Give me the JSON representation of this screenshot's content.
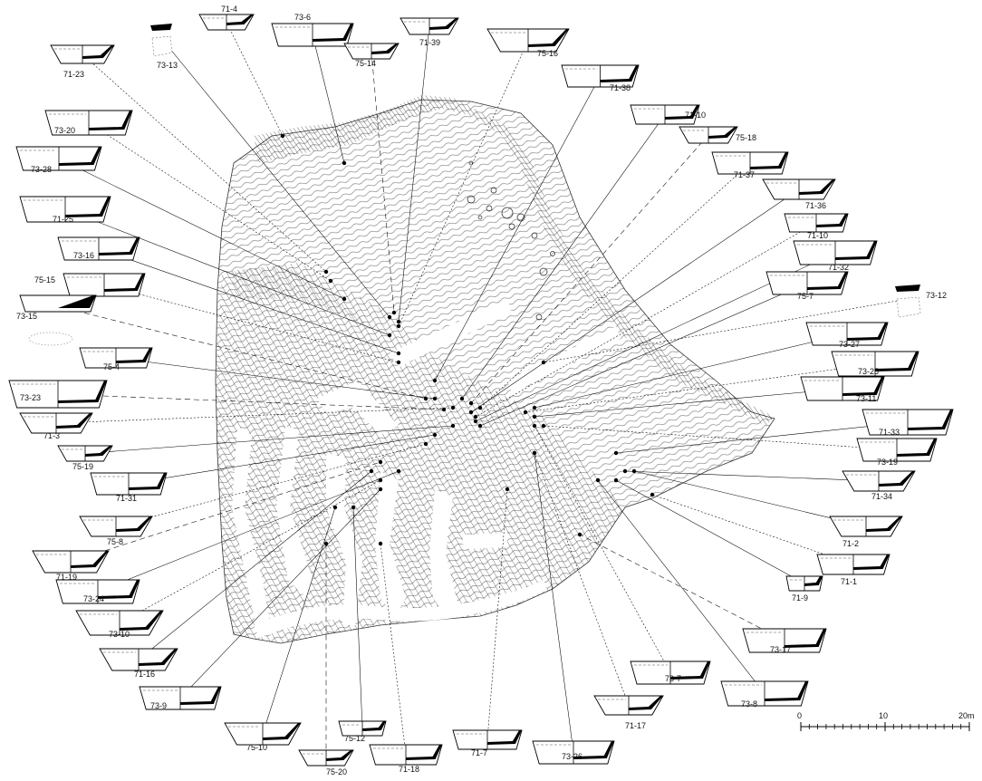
{
  "sherds": [
    {
      "id": "71-4"
    },
    {
      "id": "73-6"
    },
    {
      "id": "71-39"
    },
    {
      "id": "75-16"
    },
    {
      "id": "73-13"
    },
    {
      "id": "75-14"
    },
    {
      "id": "71-23"
    },
    {
      "id": "71-38"
    },
    {
      "id": "71-10"
    },
    {
      "id": "73-20"
    },
    {
      "id": "75-18"
    },
    {
      "id": "73-28"
    },
    {
      "id": "71-37"
    },
    {
      "id": "71-25"
    },
    {
      "id": "71-36"
    },
    {
      "id": "71-10"
    },
    {
      "id": "73-16"
    },
    {
      "id": "71-32"
    },
    {
      "id": "75-15"
    },
    {
      "id": "75-7"
    },
    {
      "id": "73-15"
    },
    {
      "id": "73-12"
    },
    {
      "id": "75-4"
    },
    {
      "id": "73-27"
    },
    {
      "id": "73-25"
    },
    {
      "id": "73-23"
    },
    {
      "id": "73-11"
    },
    {
      "id": "71-3"
    },
    {
      "id": "71-33"
    },
    {
      "id": "75-19"
    },
    {
      "id": "73-19"
    },
    {
      "id": "71-31"
    },
    {
      "id": "71-34"
    },
    {
      "id": "75-8"
    },
    {
      "id": "71-2"
    },
    {
      "id": "71-19"
    },
    {
      "id": "71-1"
    },
    {
      "id": "73-24"
    },
    {
      "id": "71-9"
    },
    {
      "id": "73-10"
    },
    {
      "id": "73-17"
    },
    {
      "id": "71-16"
    },
    {
      "id": "73-7"
    },
    {
      "id": "73-9"
    },
    {
      "id": "73-8"
    },
    {
      "id": "71-17"
    },
    {
      "id": "75-10"
    },
    {
      "id": "75-12"
    },
    {
      "id": "71-7"
    },
    {
      "id": "73-26"
    },
    {
      "id": "75-20"
    },
    {
      "id": "71-18"
    }
  ],
  "scale_bar": {
    "ticks": [
      "0",
      "10",
      "20m"
    ]
  }
}
